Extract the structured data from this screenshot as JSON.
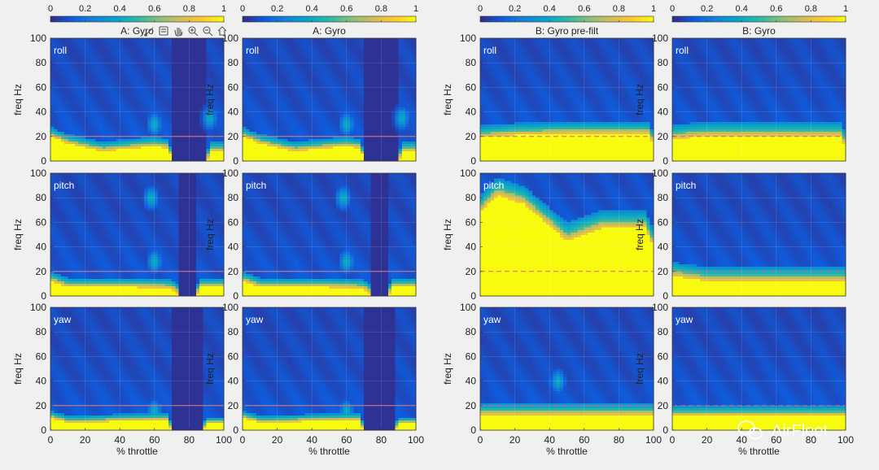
{
  "toolbar": {
    "icons": [
      "brush-icon",
      "datatip-icon",
      "pan-hand-icon",
      "zoom-in-icon",
      "zoom-out-icon",
      "home-icon"
    ]
  },
  "chart_data": {
    "type": "heatmap",
    "colormap": "parula",
    "colorbar_range": [
      0,
      1
    ],
    "colorbar_ticks": [
      "0",
      "0.2",
      "0.4",
      "0.6",
      "0.8",
      "1"
    ],
    "x_ticks": [
      "0",
      "20",
      "40",
      "60",
      "80",
      "100"
    ],
    "y_ticks": [
      "0",
      "20",
      "40",
      "60",
      "80",
      "100"
    ],
    "xlim": [
      0,
      100
    ],
    "ylim": [
      0,
      100
    ],
    "xlabel": "% throttle",
    "ylabel": "freq Hz",
    "reference_line_hz": 20,
    "grid": true,
    "columns": [
      {
        "title": "A: Gyro",
        "line_color": "#d98080",
        "line_style": "solid"
      },
      {
        "title": "A: Gyro",
        "line_color": "#d98080",
        "line_style": "solid"
      },
      {
        "title": "B: Gyro pre-filt",
        "line_color": "#e0607a",
        "line_style": "dashed"
      },
      {
        "title": "B: Gyro",
        "line_color": "#e0607a",
        "line_style": "dashed"
      }
    ],
    "rows": [
      "roll",
      "pitch",
      "yaw"
    ],
    "panels": [
      {
        "column": 0,
        "axis": "roll",
        "yellow_boundary_hz": [
          [
            0,
            20
          ],
          [
            10,
            14
          ],
          [
            30,
            8
          ],
          [
            60,
            12
          ],
          [
            68,
            10
          ],
          [
            70,
            0
          ],
          [
            90,
            0
          ],
          [
            93,
            8
          ],
          [
            100,
            8
          ]
        ],
        "green_fringe_hz": 8,
        "bright_spots": [
          [
            60,
            30
          ],
          [
            92,
            35
          ]
        ],
        "dead_band": [
          70,
          90
        ]
      },
      {
        "column": 0,
        "axis": "pitch",
        "yellow_boundary_hz": [
          [
            0,
            12
          ],
          [
            10,
            7
          ],
          [
            50,
            7
          ],
          [
            70,
            6
          ],
          [
            75,
            0
          ],
          [
            84,
            0
          ],
          [
            87,
            7
          ],
          [
            100,
            7
          ]
        ],
        "green_fringe_hz": 8,
        "bright_spots": [
          [
            58,
            80
          ],
          [
            60,
            28
          ]
        ],
        "dead_band": [
          75,
          84
        ]
      },
      {
        "column": 0,
        "axis": "yaw",
        "yellow_boundary_hz": [
          [
            0,
            10
          ],
          [
            10,
            6
          ],
          [
            60,
            8
          ],
          [
            67,
            8
          ],
          [
            70,
            0
          ],
          [
            88,
            0
          ],
          [
            90,
            5
          ],
          [
            100,
            5
          ]
        ],
        "green_fringe_hz": 6,
        "bright_spots": [
          [
            60,
            15
          ]
        ],
        "dead_band": [
          70,
          88
        ]
      },
      {
        "column": 1,
        "axis": "roll",
        "yellow_boundary_hz": [
          [
            0,
            20
          ],
          [
            10,
            14
          ],
          [
            30,
            8
          ],
          [
            60,
            12
          ],
          [
            68,
            10
          ],
          [
            70,
            0
          ],
          [
            90,
            0
          ],
          [
            93,
            8
          ],
          [
            100,
            8
          ]
        ],
        "green_fringe_hz": 8,
        "bright_spots": [
          [
            60,
            30
          ],
          [
            92,
            35
          ]
        ],
        "dead_band": [
          70,
          90
        ]
      },
      {
        "column": 1,
        "axis": "pitch",
        "yellow_boundary_hz": [
          [
            0,
            12
          ],
          [
            10,
            7
          ],
          [
            50,
            7
          ],
          [
            70,
            6
          ],
          [
            75,
            0
          ],
          [
            84,
            0
          ],
          [
            87,
            7
          ],
          [
            100,
            7
          ]
        ],
        "green_fringe_hz": 8,
        "bright_spots": [
          [
            58,
            80
          ],
          [
            60,
            28
          ]
        ],
        "dead_band": [
          75,
          84
        ]
      },
      {
        "column": 1,
        "axis": "yaw",
        "yellow_boundary_hz": [
          [
            0,
            10
          ],
          [
            10,
            6
          ],
          [
            60,
            8
          ],
          [
            67,
            8
          ],
          [
            70,
            0
          ],
          [
            88,
            0
          ],
          [
            90,
            5
          ],
          [
            100,
            5
          ]
        ],
        "green_fringe_hz": 6,
        "bright_spots": [
          [
            60,
            15
          ]
        ],
        "dead_band": [
          70,
          88
        ]
      },
      {
        "column": 2,
        "axis": "roll",
        "yellow_boundary_hz": [
          [
            0,
            19
          ],
          [
            20,
            21
          ],
          [
            50,
            22
          ],
          [
            80,
            22
          ],
          [
            97,
            22
          ],
          [
            100,
            14
          ]
        ],
        "green_fringe_hz": 10,
        "bright_spots": [],
        "dead_band": null
      },
      {
        "column": 2,
        "axis": "pitch",
        "yellow_boundary_hz": [
          [
            0,
            68
          ],
          [
            10,
            82
          ],
          [
            25,
            75
          ],
          [
            50,
            45
          ],
          [
            70,
            55
          ],
          [
            95,
            55
          ],
          [
            100,
            40
          ]
        ],
        "green_fringe_hz": 15,
        "bright_spots": [],
        "dead_band": null
      },
      {
        "column": 2,
        "axis": "yaw",
        "yellow_boundary_hz": [
          [
            0,
            12
          ],
          [
            50,
            12
          ],
          [
            100,
            12
          ]
        ],
        "green_fringe_hz": 10,
        "bright_spots": [
          [
            45,
            40
          ]
        ],
        "dead_band": null
      },
      {
        "column": 3,
        "axis": "roll",
        "yellow_boundary_hz": [
          [
            0,
            18
          ],
          [
            20,
            20
          ],
          [
            50,
            20
          ],
          [
            80,
            20
          ],
          [
            97,
            20
          ],
          [
            100,
            12
          ]
        ],
        "green_fringe_hz": 12,
        "bright_spots": [],
        "dead_band": null
      },
      {
        "column": 3,
        "axis": "pitch",
        "yellow_boundary_hz": [
          [
            0,
            16
          ],
          [
            10,
            14
          ],
          [
            20,
            12
          ],
          [
            50,
            12
          ],
          [
            100,
            12
          ]
        ],
        "green_fringe_hz": 12,
        "bright_spots": [],
        "dead_band": null
      },
      {
        "column": 3,
        "axis": "yaw",
        "yellow_boundary_hz": [
          [
            0,
            12
          ],
          [
            50,
            12
          ],
          [
            100,
            12
          ]
        ],
        "green_fringe_hz": 8,
        "bright_spots": [],
        "dead_band": null
      }
    ]
  },
  "watermark": {
    "text": "AirFleet",
    "icon": "wechat-icon"
  }
}
